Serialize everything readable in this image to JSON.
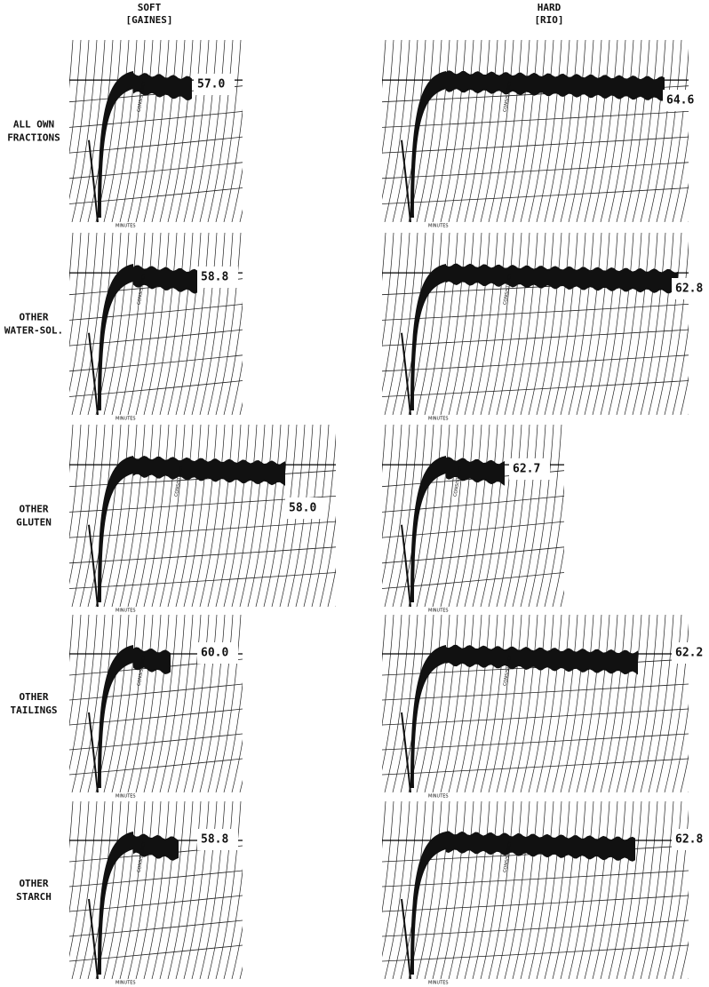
{
  "header": {
    "columns": [
      {
        "title": "SOFT",
        "subtitle": "[GAINES]"
      },
      {
        "title": "HARD",
        "subtitle": "[RIO]"
      }
    ]
  },
  "axis_texts": {
    "minutes": "MINUTES",
    "consistency": "CONSISTENCY"
  },
  "rows": [
    {
      "label": [
        "ALL OWN",
        "FRACTIONS"
      ],
      "values": [
        "57.0",
        "64.6"
      ]
    },
    {
      "label": [
        "OTHER",
        "WATER-SOL."
      ],
      "values": [
        "58.8",
        "62.8"
      ]
    },
    {
      "label": [
        "OTHER",
        "GLUTEN"
      ],
      "values": [
        "58.0",
        "62.7"
      ]
    },
    {
      "label": [
        "OTHER",
        "TAILINGS"
      ],
      "values": [
        "60.0",
        "62.2"
      ]
    },
    {
      "label": [
        "OTHER",
        "STARCH"
      ],
      "values": [
        "58.8",
        "62.8"
      ]
    }
  ]
}
